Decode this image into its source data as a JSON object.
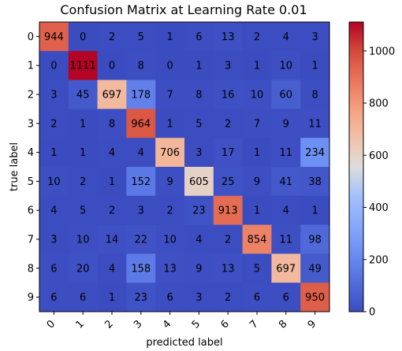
{
  "chart_data": {
    "type": "heatmap",
    "title": "Confusion Matrix at Learning Rate 0.01",
    "xlabel": "predicted label",
    "ylabel": "true label",
    "x_categories": [
      "0",
      "1",
      "2",
      "3",
      "4",
      "5",
      "6",
      "7",
      "8",
      "9"
    ],
    "y_categories": [
      "0",
      "1",
      "2",
      "3",
      "4",
      "5",
      "6",
      "7",
      "8",
      "9"
    ],
    "values": [
      [
        944,
        0,
        2,
        5,
        1,
        6,
        13,
        2,
        4,
        3
      ],
      [
        0,
        1111,
        0,
        8,
        0,
        1,
        3,
        1,
        10,
        1
      ],
      [
        3,
        45,
        697,
        178,
        7,
        8,
        16,
        10,
        60,
        8
      ],
      [
        2,
        1,
        8,
        964,
        1,
        5,
        2,
        7,
        9,
        11
      ],
      [
        1,
        1,
        4,
        4,
        706,
        3,
        17,
        1,
        11,
        234
      ],
      [
        10,
        2,
        1,
        152,
        9,
        605,
        25,
        9,
        41,
        38
      ],
      [
        4,
        5,
        2,
        3,
        2,
        23,
        913,
        1,
        4,
        1
      ],
      [
        3,
        10,
        14,
        22,
        10,
        4,
        2,
        854,
        11,
        98
      ],
      [
        6,
        20,
        4,
        158,
        13,
        9,
        13,
        5,
        697,
        49
      ],
      [
        6,
        6,
        1,
        23,
        6,
        3,
        2,
        6,
        6,
        950
      ]
    ],
    "colormap": "coolwarm",
    "color_range": [
      0,
      1111
    ],
    "colorbar_ticks": [
      0,
      200,
      400,
      600,
      800,
      1000
    ]
  }
}
